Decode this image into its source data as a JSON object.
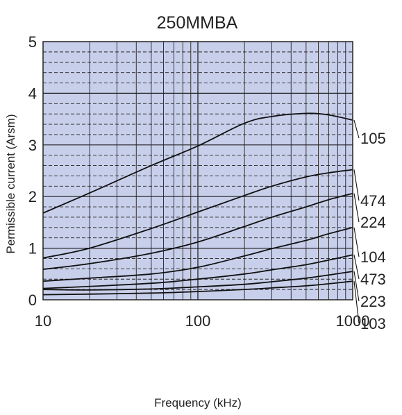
{
  "chart_data": {
    "type": "line",
    "title": "250MMBA",
    "xlabel": "Frequency (kHz)",
    "ylabel": "Permissible current (Arsm)",
    "x_scale": "log",
    "xlim": [
      10,
      1000
    ],
    "ylim": [
      0,
      5
    ],
    "x_ticks": [
      "10",
      "100",
      "1000"
    ],
    "y_ticks": [
      "0",
      "1",
      "2",
      "3",
      "4",
      "5"
    ],
    "grid": true,
    "legend": "labels at right end of each curve",
    "colors": {
      "plot_bg": "#c8cfea",
      "grid": "#222222",
      "line": "#111111"
    },
    "series": [
      {
        "name": "105",
        "x": [
          10,
          20,
          50,
          100,
          200,
          300,
          500,
          700,
          1000
        ],
        "y": [
          1.68,
          2.07,
          2.6,
          2.98,
          3.42,
          3.55,
          3.61,
          3.58,
          3.48
        ]
      },
      {
        "name": "474",
        "x": [
          10,
          20,
          50,
          100,
          200,
          300,
          500,
          700,
          1000
        ],
        "y": [
          0.81,
          1.0,
          1.38,
          1.7,
          2.02,
          2.2,
          2.38,
          2.46,
          2.52
        ]
      },
      {
        "name": "224",
        "x": [
          10,
          20,
          50,
          100,
          200,
          300,
          500,
          700,
          1000
        ],
        "y": [
          0.59,
          0.7,
          0.9,
          1.12,
          1.42,
          1.6,
          1.8,
          1.94,
          2.06
        ]
      },
      {
        "name": "104",
        "x": [
          10,
          20,
          50,
          100,
          200,
          300,
          500,
          700,
          1000
        ],
        "y": [
          0.36,
          0.42,
          0.5,
          0.63,
          0.85,
          0.99,
          1.15,
          1.28,
          1.4
        ]
      },
      {
        "name": "473",
        "x": [
          10,
          20,
          50,
          100,
          200,
          300,
          500,
          700,
          1000
        ],
        "y": [
          0.22,
          0.26,
          0.32,
          0.4,
          0.5,
          0.58,
          0.68,
          0.77,
          0.87
        ]
      },
      {
        "name": "223",
        "x": [
          10,
          20,
          50,
          100,
          200,
          300,
          500,
          700,
          1000
        ],
        "y": [
          0.2,
          0.19,
          0.21,
          0.25,
          0.3,
          0.35,
          0.42,
          0.48,
          0.55
        ]
      },
      {
        "name": "103",
        "x": [
          10,
          20,
          50,
          100,
          200,
          300,
          500,
          700,
          1000
        ],
        "y": [
          0.1,
          0.11,
          0.13,
          0.16,
          0.2,
          0.23,
          0.27,
          0.31,
          0.36
        ]
      }
    ]
  }
}
